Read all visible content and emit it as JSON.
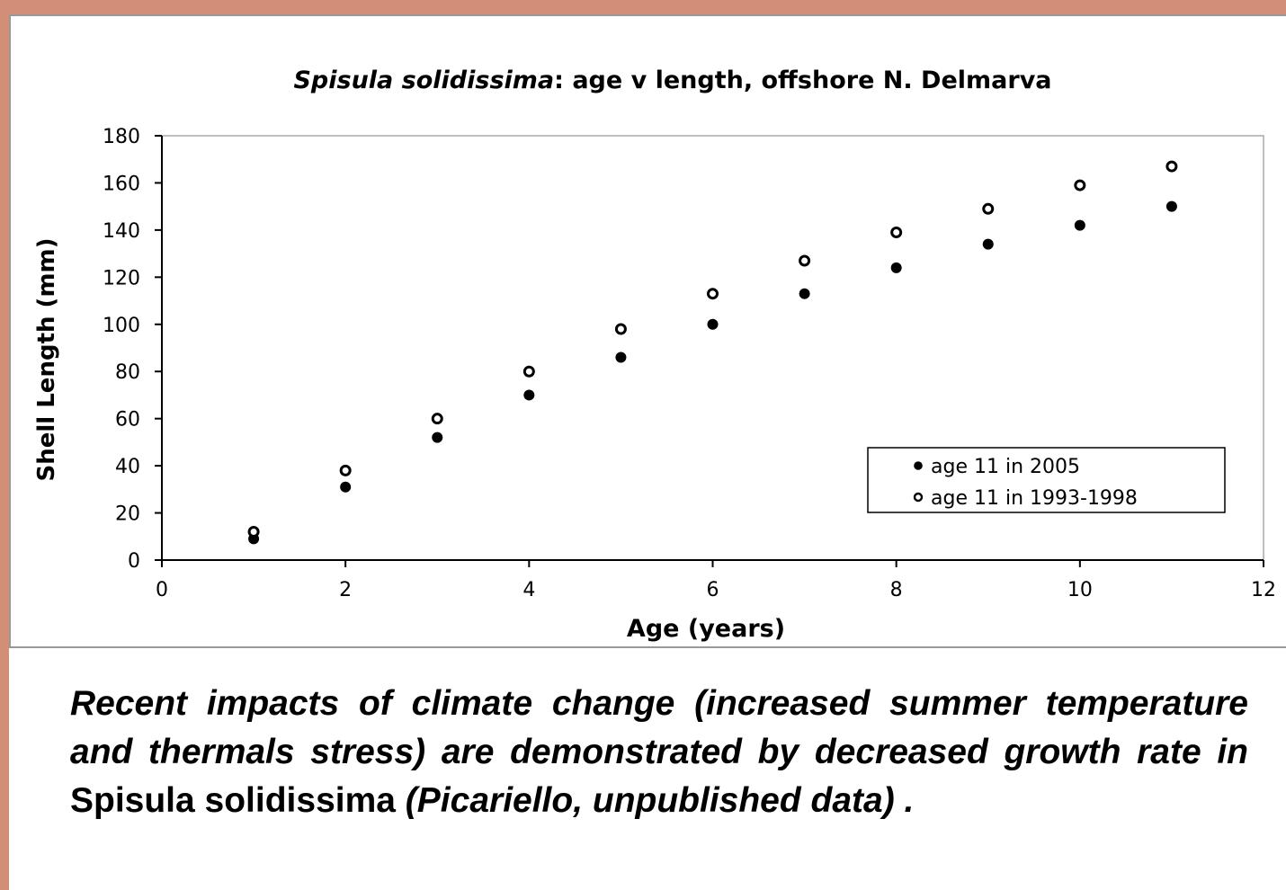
{
  "chart_data": {
    "type": "scatter",
    "title": [
      "Spisula solidissima",
      ": age v length, offshore N. Delmarva"
    ],
    "x_label": "Age (years)",
    "y_label": "Shell Length (mm)",
    "xlim": [
      0,
      12
    ],
    "xticks": [
      0,
      2,
      4,
      6,
      8,
      10,
      12
    ],
    "ylim": [
      0,
      180
    ],
    "yticks": [
      0,
      20,
      40,
      60,
      80,
      100,
      120,
      140,
      160,
      180
    ],
    "legend": "lower right",
    "series": [
      {
        "name": "age 11 in 2005",
        "color": "#000000",
        "marker": "filled",
        "x": [
          1,
          2,
          3,
          4,
          5,
          6,
          7,
          8,
          9,
          10,
          11
        ],
        "values": [
          9,
          31,
          52,
          70,
          86,
          100,
          113,
          124,
          134,
          142,
          150
        ]
      },
      {
        "name": "age 11 in 1993-1998",
        "color": "#000000",
        "marker": "open",
        "x": [
          1,
          2,
          3,
          4,
          5,
          6,
          7,
          8,
          9,
          10,
          11
        ],
        "values": [
          12,
          38,
          60,
          80,
          98,
          113,
          127,
          139,
          149,
          159,
          167
        ]
      }
    ]
  },
  "caption": [
    "Recent impacts of climate change (increased summer temperature and thermals stress) are demonstrated by decreased growth rate in ",
    "Spisula solidissima",
    " (Picariello, unpublished data) ."
  ]
}
